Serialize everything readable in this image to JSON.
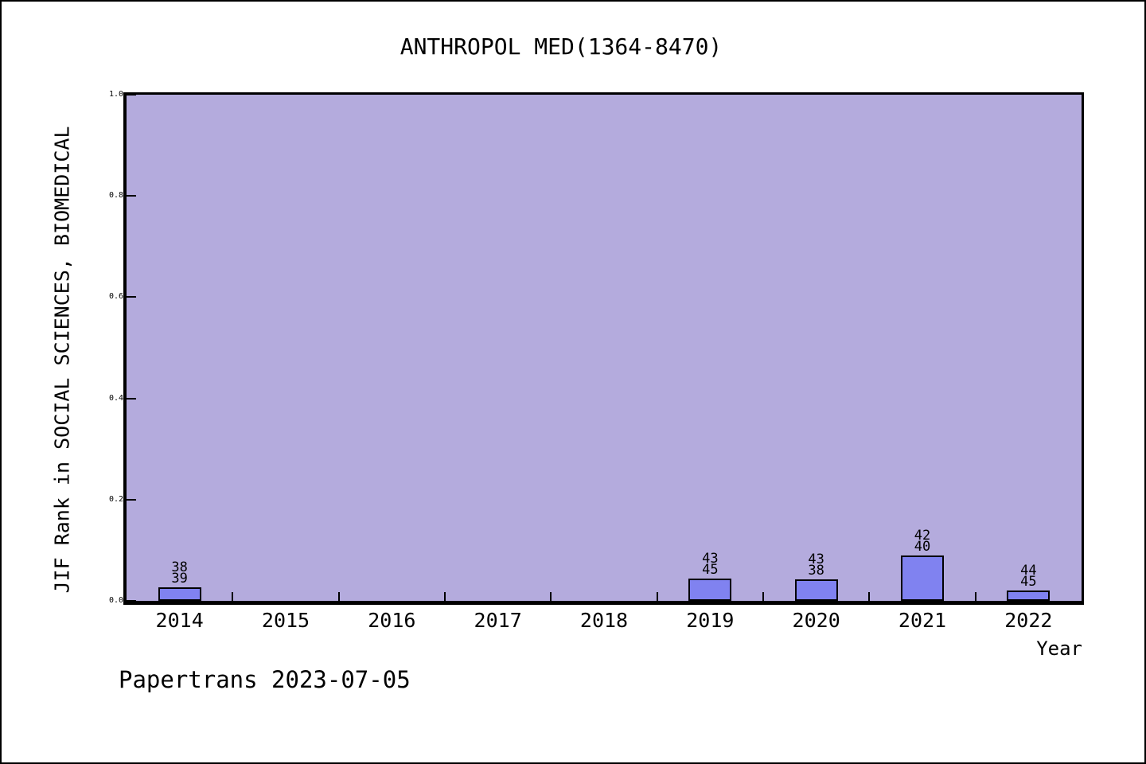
{
  "footer": "Papertrans 2023-07-05",
  "chart_data": {
    "type": "bar",
    "title": "ANTHROPOL MED(1364-8470)",
    "xlabel": "Year",
    "ylabel": "JIF Rank in SOCIAL SCIENCES, BIOMEDICAL",
    "categories": [
      "2014",
      "2015",
      "2016",
      "2017",
      "2018",
      "2019",
      "2020",
      "2021",
      "2022"
    ],
    "values": [
      0.026,
      null,
      null,
      null,
      null,
      0.044,
      0.043,
      0.089,
      0.021
    ],
    "bar_labels": [
      [
        "38",
        "39"
      ],
      null,
      null,
      null,
      null,
      [
        "43",
        "45"
      ],
      [
        "43",
        "38"
      ],
      [
        "42",
        "40"
      ],
      [
        "44",
        "45"
      ]
    ],
    "ylim": [
      0.0,
      1.0
    ],
    "yticks": [
      "0.0",
      "0.2",
      "0.4",
      "0.6",
      "0.8",
      "1.0"
    ],
    "grid": false,
    "legend_position": "none",
    "colors": {
      "plot_background": "#b4abdd",
      "bar_fill": "#8082f0",
      "bar_border": "#000000",
      "axis": "#000000",
      "text": "#000000"
    }
  }
}
